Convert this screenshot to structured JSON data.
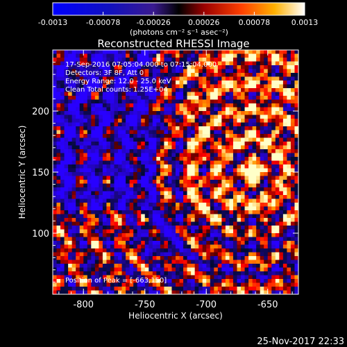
{
  "chart_data": {
    "type": "heatmap",
    "title": "Reconstructed RHESSI Image",
    "xlabel": "Heliocentric X (arcsec)",
    "ylabel": "Heliocentric Y (arcsec)",
    "xlim": [
      -825,
      -625
    ],
    "ylim": [
      50,
      250
    ],
    "xticks": [
      "-800",
      "-750",
      "-700",
      "-650"
    ],
    "xtick_values": [
      -800,
      -750,
      -700,
      -650
    ],
    "yticks": [
      "100",
      "150",
      "200"
    ],
    "ytick_values": [
      100,
      150,
      200
    ],
    "colorbar": {
      "vmin": -0.0013,
      "vmax": 0.0013,
      "ticks": [
        "-0.0013",
        "-0.00078",
        "-0.00026",
        "0.00026",
        "0.00078",
        "0.0013"
      ],
      "tick_values": [
        -0.0013,
        -0.00078,
        -0.00026,
        0.00026,
        0.00078,
        0.0013
      ],
      "label": "(photons cm⁻² s⁻¹ asec⁻²)"
    },
    "annotations": {
      "time_range": "17-Sep-2016 07:05:04.000 to 07:15:04.000",
      "detectors": "Detectors: 3F 8F, Att 0",
      "energy": "Energy Range: 12.0 - 25.0 keV",
      "clean": "Clean    Total counts: 1.25E+04",
      "peak": "Position of Peak = [-663,150]"
    },
    "peak": [
      -663,
      150
    ]
  },
  "footer": {
    "date": "25-Nov-2017 22:33"
  }
}
